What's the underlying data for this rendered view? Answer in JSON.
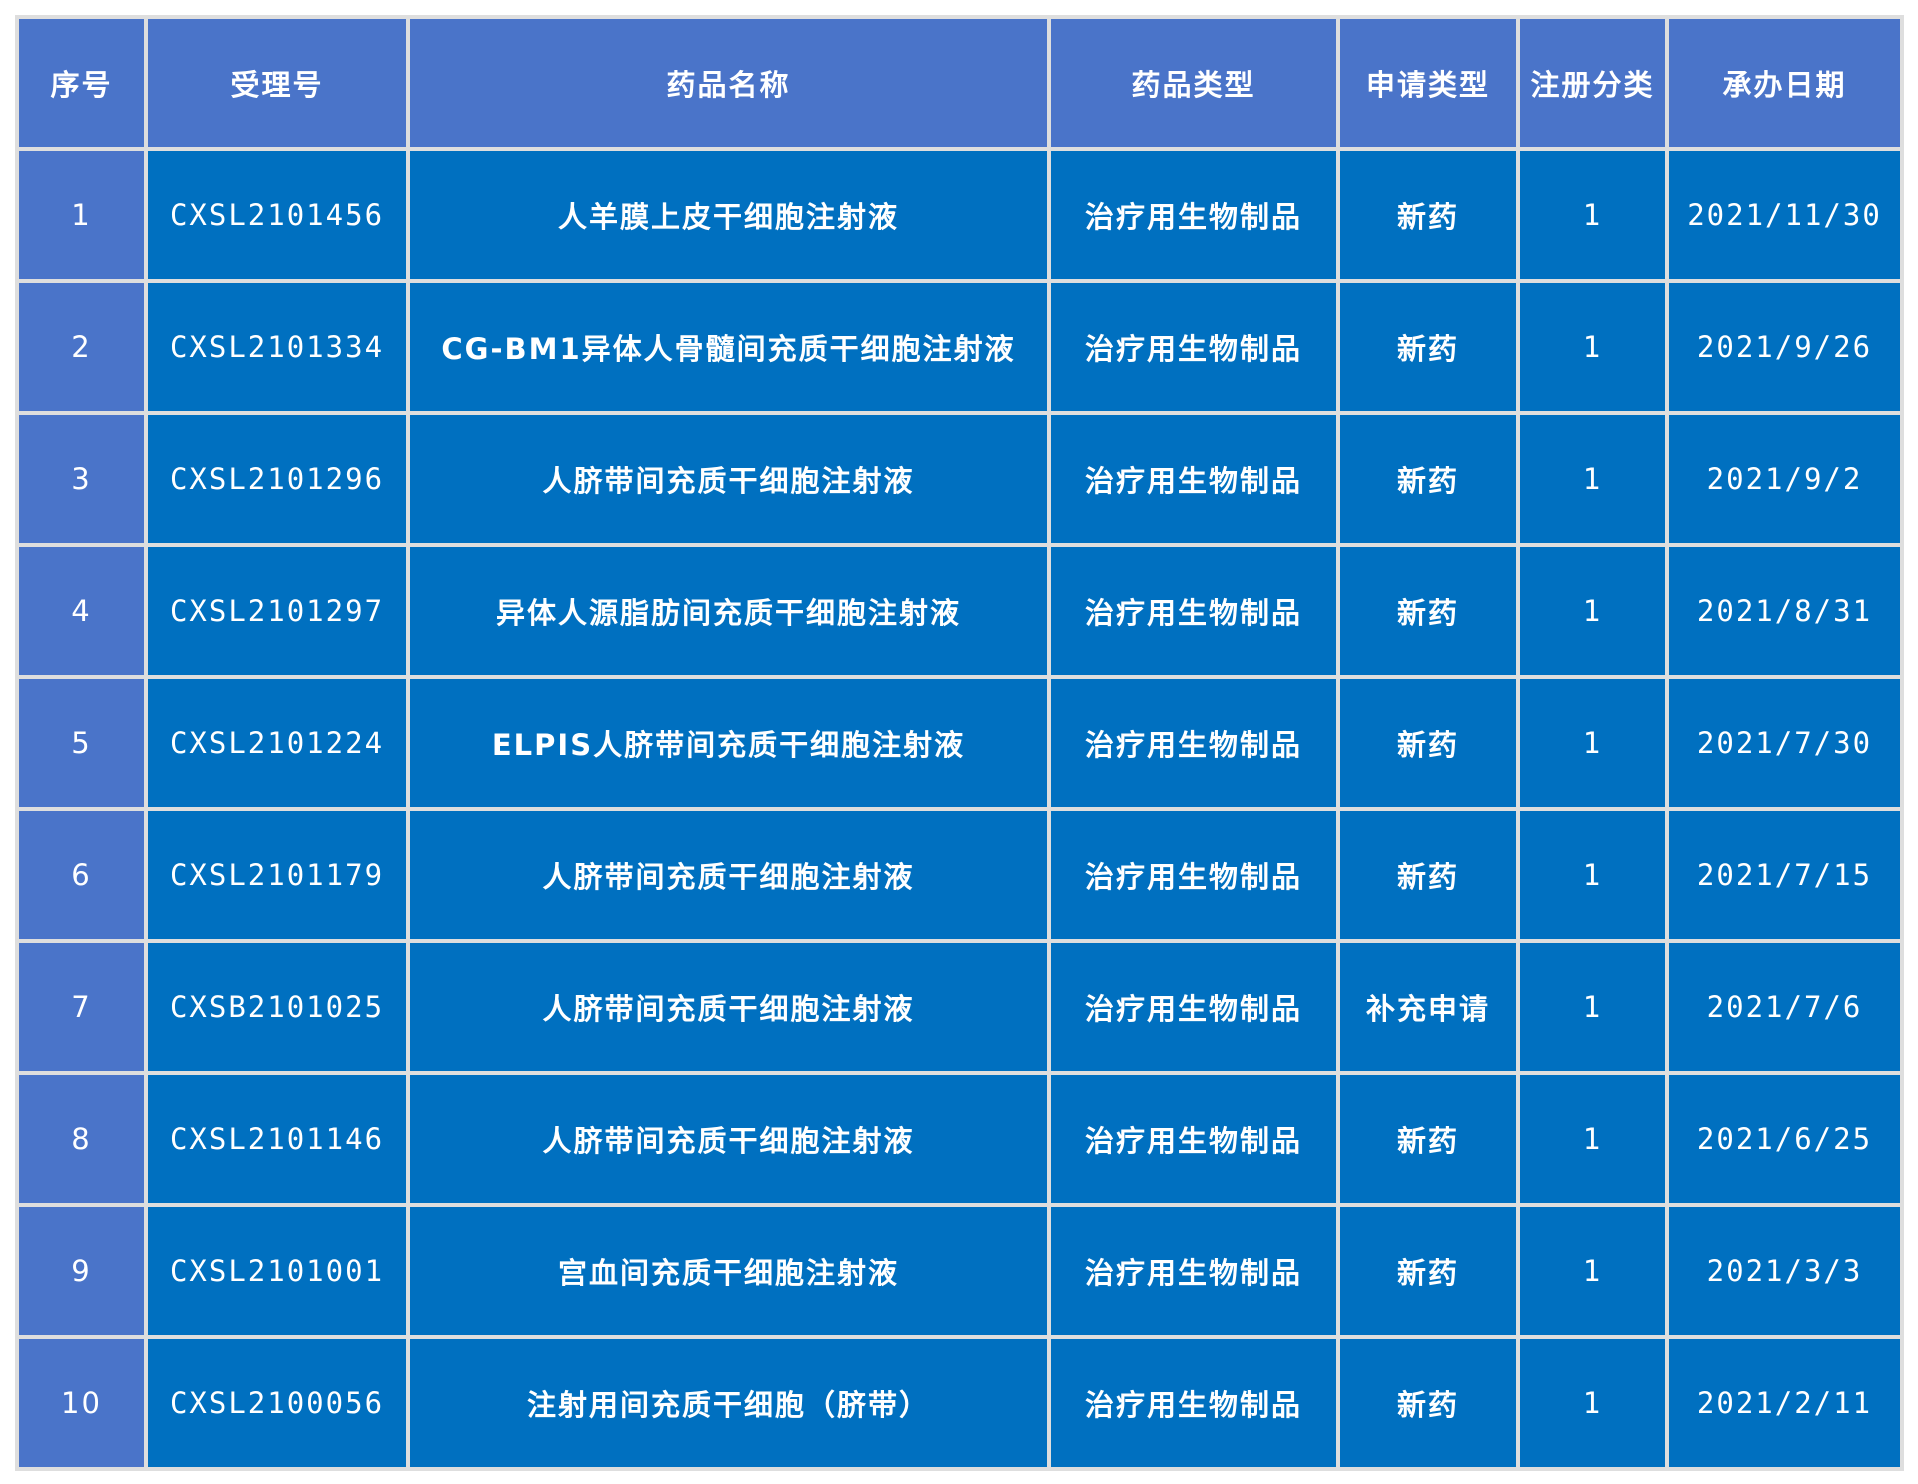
{
  "table": {
    "headers": [
      "序号",
      "受理号",
      "药品名称",
      "药品类型",
      "申请类型",
      "注册分类",
      "承办日期"
    ],
    "rows": [
      [
        "1",
        "CXSL2101456",
        "人羊膜上皮干细胞注射液",
        "治疗用生物制品",
        "新药",
        "1",
        "2021/11/30"
      ],
      [
        "2",
        "CXSL2101334",
        "CG-BM1异体人骨髓间充质干细胞注射液",
        "治疗用生物制品",
        "新药",
        "1",
        "2021/9/26"
      ],
      [
        "3",
        "CXSL2101296",
        "人脐带间充质干细胞注射液",
        "治疗用生物制品",
        "新药",
        "1",
        "2021/9/2"
      ],
      [
        "4",
        "CXSL2101297",
        "异体人源脂肪间充质干细胞注射液",
        "治疗用生物制品",
        "新药",
        "1",
        "2021/8/31"
      ],
      [
        "5",
        "CXSL2101224",
        "ELPIS人脐带间充质干细胞注射液",
        "治疗用生物制品",
        "新药",
        "1",
        "2021/7/30"
      ],
      [
        "6",
        "CXSL2101179",
        "人脐带间充质干细胞注射液",
        "治疗用生物制品",
        "新药",
        "1",
        "2021/7/15"
      ],
      [
        "7",
        "CXSB2101025",
        "人脐带间充质干细胞注射液",
        "治疗用生物制品",
        "补充申请",
        "1",
        "2021/7/6"
      ],
      [
        "8",
        "CXSL2101146",
        "人脐带间充质干细胞注射液",
        "治疗用生物制品",
        "新药",
        "1",
        "2021/6/25"
      ],
      [
        "9",
        "CXSL2101001",
        "宫血间充质干细胞注射液",
        "治疗用生物制品",
        "新药",
        "1",
        "2021/3/3"
      ],
      [
        "10",
        "CXSL2100056",
        "注射用间充质干细胞（脐带）",
        "治疗用生物制品",
        "新药",
        "1",
        "2021/2/11"
      ]
    ]
  },
  "colors": {
    "header": "#4a74c9",
    "body": "#0070c0",
    "grid": "#dedede"
  }
}
